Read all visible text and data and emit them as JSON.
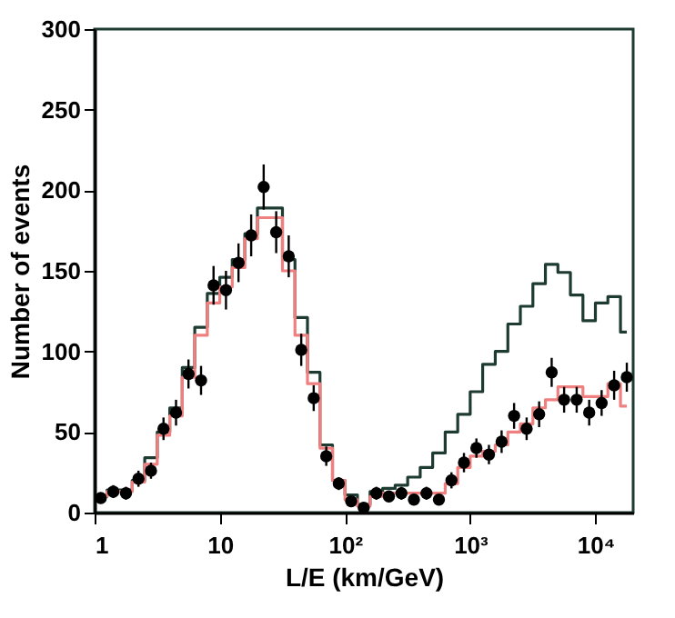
{
  "chart_data": {
    "type": "step",
    "xlabel": "L/E (km/GeV)",
    "ylabel": "Number of events",
    "x": [
      1.12,
      1.41,
      1.78,
      2.24,
      2.82,
      3.55,
      4.47,
      5.62,
      7.08,
      8.91,
      11.2,
      14.1,
      17.8,
      22.4,
      28.2,
      35.5,
      44.7,
      56.2,
      70.8,
      89.1,
      112,
      141,
      178,
      224,
      282,
      355,
      447,
      562,
      708,
      891,
      1120,
      1410,
      1780,
      2240,
      2820,
      3550,
      4470,
      5620,
      7080,
      8910,
      11200,
      14100,
      17800
    ],
    "series": [
      {
        "color": "#1e3b32",
        "values": [
          10,
          14,
          14,
          20,
          34,
          50,
          65,
          90,
          115,
          136,
          146,
          157,
          173,
          189,
          189,
          157,
          121,
          87,
          42,
          20,
          11,
          5,
          13,
          15,
          17,
          22,
          28,
          37,
          50,
          61,
          75,
          92,
          100,
          117,
          128,
          142,
          154,
          149,
          135,
          119,
          130,
          134,
          112
        ]
      },
      {
        "color": "#f08080",
        "values": [
          10,
          13,
          13,
          19,
          30,
          48,
          60,
          84,
          110,
          130,
          140,
          152,
          170,
          183,
          183,
          150,
          110,
          80,
          40,
          20,
          8,
          4,
          10,
          12,
          12,
          12,
          12,
          12,
          18,
          28,
          35,
          38,
          42,
          50,
          55,
          65,
          70,
          78,
          78,
          72,
          72,
          80,
          66
        ]
      },
      {
        "type": "scatter",
        "color": "#000000",
        "marker": "circle",
        "values": [
          9,
          13,
          12,
          21,
          26,
          52,
          62,
          86,
          82,
          141,
          138,
          155,
          172,
          202,
          174,
          159,
          101,
          71,
          35,
          18,
          7,
          3,
          12,
          10,
          12,
          8,
          12,
          8,
          20,
          31,
          40,
          36,
          44,
          60,
          52,
          61,
          87,
          70,
          70,
          62,
          68,
          79,
          84
        ],
        "errors": [
          3,
          4,
          4,
          5,
          5,
          7,
          8,
          9,
          9,
          12,
          12,
          12,
          13,
          14,
          13,
          13,
          10,
          8,
          6,
          4,
          3,
          2,
          4,
          3,
          4,
          3,
          4,
          3,
          5,
          6,
          6,
          6,
          7,
          8,
          7,
          8,
          9,
          8,
          8,
          8,
          8,
          9,
          9
        ]
      }
    ],
    "xlim": [
      1,
      20000
    ],
    "ylim": [
      0,
      300
    ],
    "xticks": [
      1,
      10,
      {
        "value": 100,
        "label": "10²"
      },
      {
        "value": 1000,
        "label": "10³"
      },
      {
        "value": 10000,
        "label": "10⁴"
      }
    ],
    "yticks": [
      0,
      50,
      100,
      150,
      200,
      250,
      300
    ],
    "log": "x",
    "grid": false
  }
}
